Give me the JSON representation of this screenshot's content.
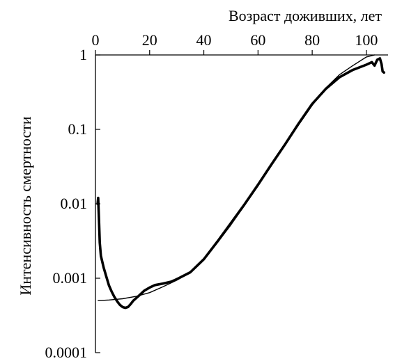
{
  "chart_data": {
    "type": "line",
    "xlabel": "Возраст доживших, лет",
    "ylabel": "Интенсивность смертности",
    "x_ticks": [
      0,
      20,
      40,
      60,
      80,
      100
    ],
    "y_ticks": [
      {
        "value": 0.0001,
        "label": "0.0001"
      },
      {
        "value": 0.001,
        "label": "0.001"
      },
      {
        "value": 0.01,
        "label": "0.01"
      },
      {
        "value": 0.1,
        "label": "0.1"
      },
      {
        "value": 1,
        "label": "1"
      }
    ],
    "xlim": [
      0,
      108
    ],
    "ylim": [
      0.0001,
      1
    ],
    "yscale": "log",
    "x_axis_position": "top",
    "grid": false,
    "series": [
      {
        "style": "thick",
        "color": "#000000",
        "x": [
          0.8,
          1,
          1.3,
          1.6,
          2,
          3,
          4,
          5,
          6,
          7,
          8,
          9,
          10,
          11,
          12,
          13,
          14,
          16,
          18,
          20,
          22,
          25,
          28,
          30,
          35,
          40,
          45,
          50,
          55,
          60,
          65,
          70,
          75,
          80,
          85,
          90,
          95,
          100,
          102,
          103,
          104,
          105,
          105.6,
          106,
          106.5
        ],
        "y": [
          0.01,
          0.012,
          0.006,
          0.003,
          0.002,
          0.0014,
          0.00105,
          0.0008,
          0.00066,
          0.00056,
          0.00049,
          0.00044,
          0.00041,
          0.0004,
          0.00041,
          0.00045,
          0.0005,
          0.00058,
          0.00068,
          0.00075,
          0.00081,
          0.00085,
          0.0009,
          0.00097,
          0.0012,
          0.0018,
          0.0031,
          0.0055,
          0.0098,
          0.018,
          0.034,
          0.063,
          0.12,
          0.22,
          0.35,
          0.5,
          0.63,
          0.74,
          0.8,
          0.72,
          0.86,
          0.9,
          0.75,
          0.6,
          0.58
        ]
      },
      {
        "style": "thin",
        "color": "#000000",
        "x": [
          1,
          5,
          10,
          15,
          20,
          25,
          30,
          35,
          40,
          45,
          50,
          55,
          60,
          65,
          70,
          75,
          80,
          85,
          90,
          95,
          100,
          103
        ],
        "y": [
          0.0005,
          0.00051,
          0.00053,
          0.00057,
          0.00064,
          0.00077,
          0.00094,
          0.0012,
          0.0018,
          0.003,
          0.0052,
          0.0095,
          0.018,
          0.034,
          0.062,
          0.115,
          0.21,
          0.36,
          0.54,
          0.72,
          0.94,
          1.0
        ]
      }
    ]
  }
}
